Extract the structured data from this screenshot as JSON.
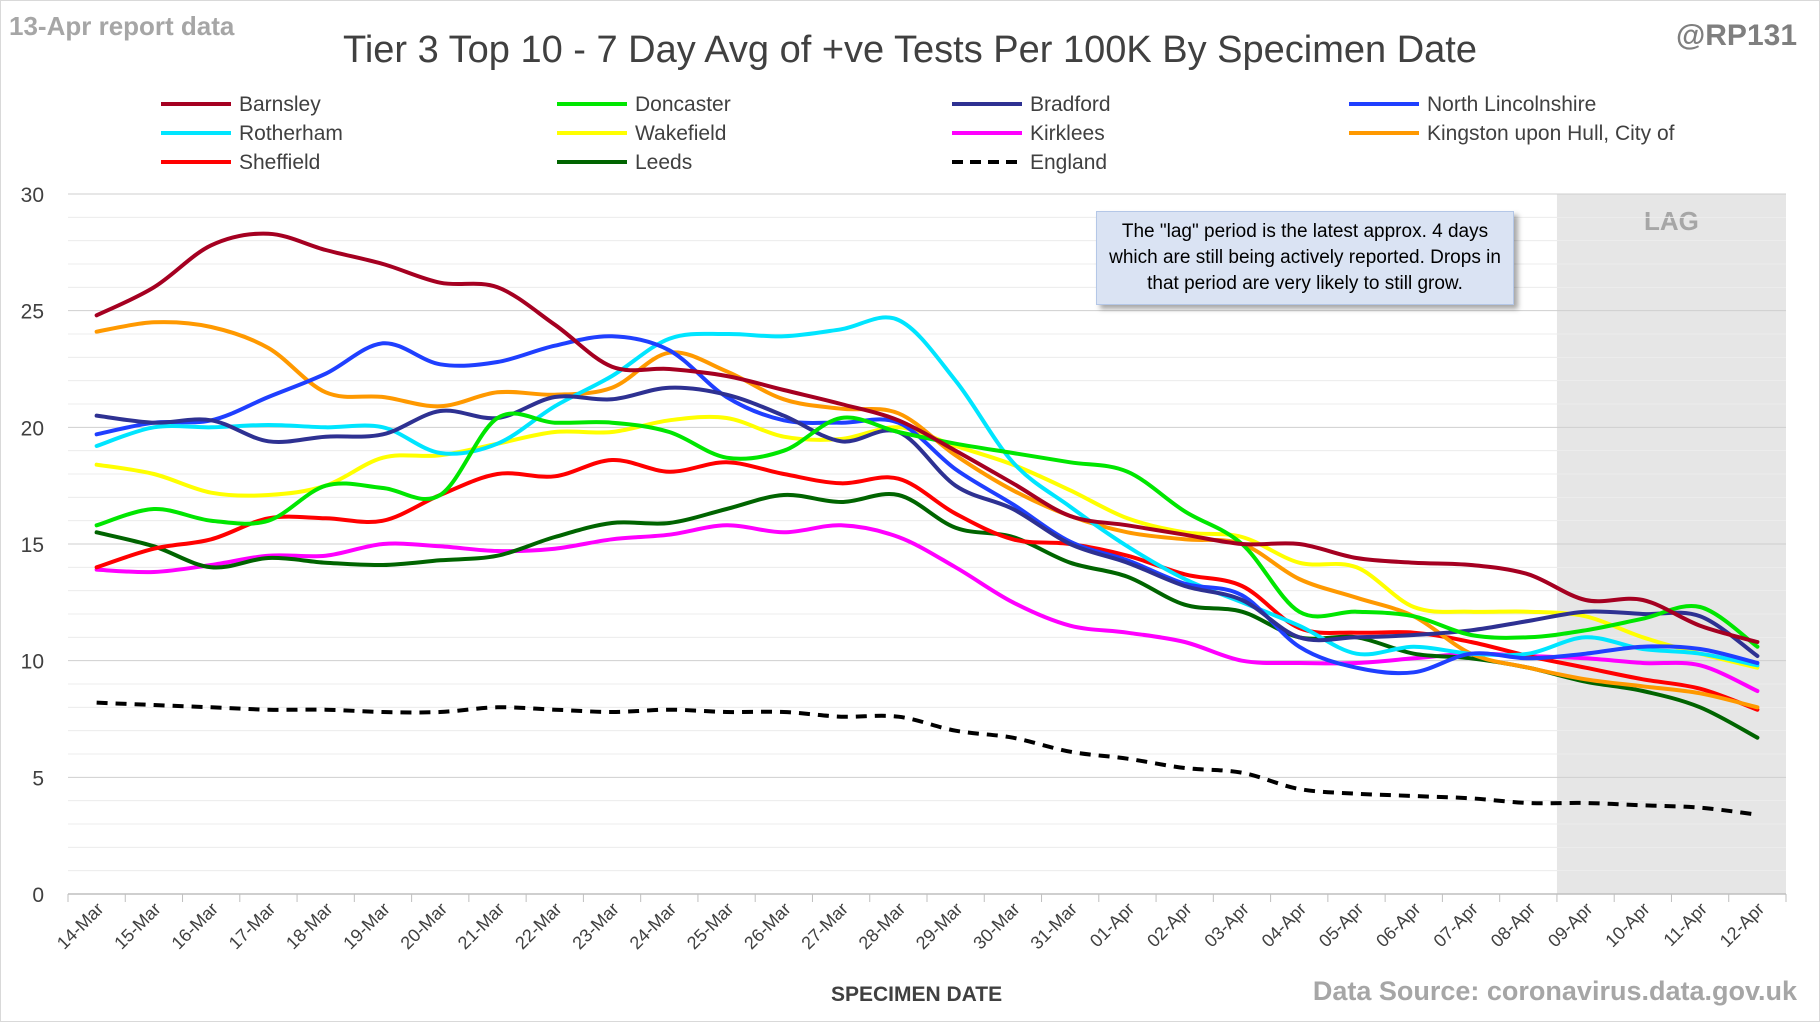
{
  "header": {
    "report_label": "13-Apr report data",
    "author": "@RP131",
    "title": "Tier 3 Top 10 - 7 Day Avg of +ve Tests Per 100K By Specimen Date"
  },
  "footer": {
    "source": "Data Source: coronavirus.data.gov.uk"
  },
  "annotation": {
    "lag_label": "LAG",
    "note": "The \"lag\" period is the latest approx. 4 days which are still being actively reported. Drops in that period are very likely to still grow."
  },
  "chart_data": {
    "type": "line",
    "title": "Tier 3 Top 10 - 7 Day Avg of +ve Tests Per 100K By Specimen Date",
    "xlabel": "SPECIMEN DATE",
    "ylabel": "",
    "ylim": [
      0,
      30
    ],
    "y_ticks": [
      0,
      5,
      10,
      15,
      20,
      25,
      30
    ],
    "grid": true,
    "legend_position": "top",
    "lag_region": [
      "09-Apr",
      "12-Apr"
    ],
    "categories": [
      "14-Mar",
      "15-Mar",
      "16-Mar",
      "17-Mar",
      "18-Mar",
      "19-Mar",
      "20-Mar",
      "21-Mar",
      "22-Mar",
      "23-Mar",
      "24-Mar",
      "25-Mar",
      "26-Mar",
      "27-Mar",
      "28-Mar",
      "29-Mar",
      "30-Mar",
      "31-Mar",
      "01-Apr",
      "02-Apr",
      "03-Apr",
      "04-Apr",
      "05-Apr",
      "06-Apr",
      "07-Apr",
      "08-Apr",
      "09-Apr",
      "10-Apr",
      "11-Apr",
      "12-Apr"
    ],
    "series": [
      {
        "name": "Barnsley",
        "color": "#a50021",
        "dashed": false,
        "values": [
          24.8,
          26.0,
          27.8,
          28.3,
          27.6,
          27.0,
          26.2,
          26.0,
          24.4,
          22.6,
          22.5,
          22.2,
          21.6,
          21.0,
          20.3,
          19.0,
          17.6,
          16.2,
          15.8,
          15.4,
          15.0,
          15.0,
          14.4,
          14.2,
          14.1,
          13.7,
          12.6,
          12.6,
          11.5,
          10.8
        ]
      },
      {
        "name": "Doncaster",
        "color": "#00e600",
        "dashed": false,
        "values": [
          15.8,
          16.5,
          16.0,
          16.0,
          17.5,
          17.4,
          17.1,
          20.4,
          20.2,
          20.2,
          19.8,
          18.7,
          19.0,
          20.4,
          19.8,
          19.3,
          18.9,
          18.5,
          18.1,
          16.4,
          15.0,
          12.1,
          12.1,
          11.9,
          11.1,
          11.0,
          11.3,
          11.8,
          12.3,
          10.6
        ]
      },
      {
        "name": "Bradford",
        "color": "#2e3192",
        "dashed": false,
        "values": [
          20.5,
          20.2,
          20.3,
          19.4,
          19.6,
          19.7,
          20.7,
          20.4,
          21.3,
          21.2,
          21.7,
          21.4,
          20.5,
          19.4,
          19.8,
          17.5,
          16.5,
          15.0,
          14.2,
          13.2,
          12.6,
          11.0,
          11.0,
          11.1,
          11.3,
          11.7,
          12.1,
          12.0,
          11.9,
          10.2
        ]
      },
      {
        "name": "North Lincolnshire",
        "color": "#1f3fff",
        "dashed": false,
        "values": [
          19.7,
          20.2,
          20.3,
          21.3,
          22.3,
          23.6,
          22.7,
          22.8,
          23.5,
          23.9,
          23.3,
          21.3,
          20.3,
          20.2,
          20.2,
          18.2,
          16.7,
          15.1,
          14.3,
          13.3,
          12.8,
          10.6,
          9.7,
          9.5,
          10.3,
          10.1,
          10.3,
          10.6,
          10.5,
          9.9
        ]
      },
      {
        "name": "Rotherham",
        "color": "#00e5ff",
        "dashed": false,
        "values": [
          19.2,
          20.0,
          20.0,
          20.1,
          20.0,
          20.0,
          18.9,
          19.3,
          20.9,
          22.2,
          23.8,
          24.0,
          23.9,
          24.2,
          24.6,
          22.0,
          18.5,
          16.6,
          14.9,
          13.5,
          12.5,
          11.5,
          10.3,
          10.6,
          10.3,
          10.3,
          11.0,
          10.5,
          10.3,
          9.8
        ]
      },
      {
        "name": "Wakefield",
        "color": "#ffff00",
        "dashed": false,
        "values": [
          18.4,
          18.0,
          17.2,
          17.1,
          17.5,
          18.7,
          18.8,
          19.3,
          19.8,
          19.8,
          20.3,
          20.4,
          19.6,
          19.5,
          20.0,
          19.2,
          18.4,
          17.3,
          16.1,
          15.5,
          15.3,
          14.2,
          14.0,
          12.3,
          12.1,
          12.1,
          11.9,
          11.0,
          10.3,
          9.7
        ]
      },
      {
        "name": "Kirklees",
        "color": "#ff00ff",
        "dashed": false,
        "values": [
          13.9,
          13.8,
          14.1,
          14.5,
          14.5,
          15.0,
          14.9,
          14.7,
          14.8,
          15.2,
          15.4,
          15.8,
          15.5,
          15.8,
          15.3,
          14.0,
          12.5,
          11.5,
          11.2,
          10.8,
          10.0,
          9.9,
          9.9,
          10.1,
          10.3,
          10.2,
          10.1,
          9.9,
          9.8,
          8.7
        ]
      },
      {
        "name": "Kingston upon Hull, City of",
        "color": "#ff9900",
        "dashed": false,
        "values": [
          24.1,
          24.5,
          24.3,
          23.4,
          21.5,
          21.3,
          20.9,
          21.5,
          21.4,
          21.7,
          23.2,
          22.4,
          21.2,
          20.8,
          20.6,
          18.8,
          17.3,
          16.2,
          15.5,
          15.2,
          15.0,
          13.5,
          12.7,
          11.9,
          10.3,
          9.7,
          9.2,
          8.9,
          8.6,
          8.0
        ]
      },
      {
        "name": "Sheffield",
        "color": "#ff0000",
        "dashed": false,
        "values": [
          14.0,
          14.8,
          15.2,
          16.1,
          16.1,
          16.0,
          17.1,
          18.0,
          17.9,
          18.6,
          18.1,
          18.5,
          18.0,
          17.6,
          17.8,
          16.3,
          15.2,
          15.0,
          14.5,
          13.7,
          13.2,
          11.4,
          11.2,
          11.2,
          10.8,
          10.2,
          9.7,
          9.2,
          8.8,
          7.9
        ]
      },
      {
        "name": "Leeds",
        "color": "#006400",
        "dashed": false,
        "values": [
          15.5,
          14.9,
          14.0,
          14.4,
          14.2,
          14.1,
          14.3,
          14.5,
          15.3,
          15.9,
          15.9,
          16.5,
          17.1,
          16.8,
          17.1,
          15.7,
          15.3,
          14.2,
          13.6,
          12.4,
          12.1,
          11.0,
          11.0,
          10.3,
          10.1,
          9.7,
          9.1,
          8.7,
          8.0,
          6.7
        ]
      },
      {
        "name": "England",
        "color": "#000000",
        "dashed": true,
        "values": [
          8.2,
          8.1,
          8.0,
          7.9,
          7.9,
          7.8,
          7.8,
          8.0,
          7.9,
          7.8,
          7.9,
          7.8,
          7.8,
          7.6,
          7.6,
          7.0,
          6.7,
          6.1,
          5.8,
          5.4,
          5.2,
          4.5,
          4.3,
          4.2,
          4.1,
          3.9,
          3.9,
          3.8,
          3.7,
          3.4
        ]
      }
    ]
  }
}
